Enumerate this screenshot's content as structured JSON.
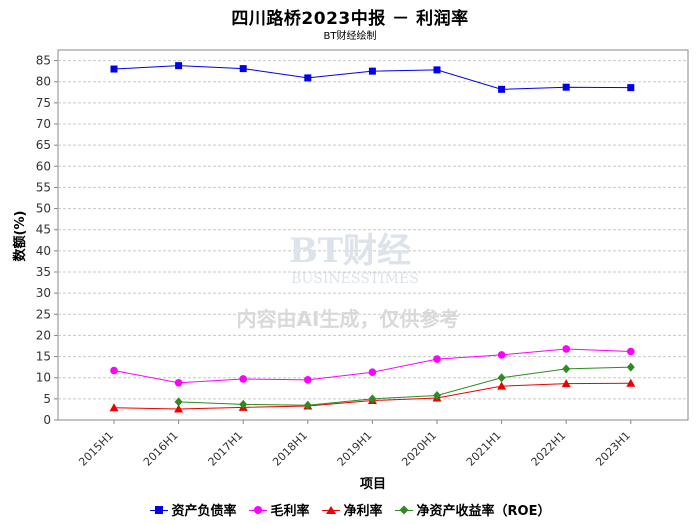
{
  "chart_data": {
    "type": "line",
    "title": "四川路桥2023中报 － 利润率",
    "subtitle": "BT财经绘制",
    "xlabel": "项目",
    "ylabel": "数额(%)",
    "categories": [
      "2015H1",
      "2016H1",
      "2017H1",
      "2018H1",
      "2019H1",
      "2020H1",
      "2021H1",
      "2022H1",
      "2023H1"
    ],
    "ylim": [
      0,
      87.5
    ],
    "yticks": [
      0,
      5,
      10,
      15,
      20,
      25,
      30,
      35,
      40,
      45,
      50,
      55,
      60,
      65,
      70,
      75,
      80,
      85
    ],
    "grid": true,
    "legend_position": "bottom",
    "series": [
      {
        "name": "资产负债率",
        "color": "#0000ee",
        "marker": "square",
        "values": [
          83.0,
          83.8,
          83.1,
          80.9,
          82.5,
          82.8,
          78.2,
          78.7,
          78.6
        ]
      },
      {
        "name": "毛利率",
        "color": "#ff00ff",
        "marker": "circle",
        "values": [
          11.7,
          8.8,
          9.7,
          9.5,
          11.3,
          14.4,
          15.4,
          16.8,
          16.2
        ]
      },
      {
        "name": "净利率",
        "color": "#ee0000",
        "marker": "triangle",
        "values": [
          2.9,
          2.6,
          3.0,
          3.3,
          4.6,
          5.2,
          8.0,
          8.6,
          8.7
        ]
      },
      {
        "name": "净资产收益率（ROE）",
        "color": "#2e8b20",
        "marker": "diamond",
        "values": [
          null,
          4.3,
          3.7,
          3.5,
          5.0,
          5.8,
          10.0,
          12.1,
          12.5
        ]
      }
    ]
  },
  "watermark": {
    "brand_cn": "BT财经",
    "brand_en": "BUSINESSTIMES",
    "notice": "内容由AI生成，仅供参考"
  }
}
